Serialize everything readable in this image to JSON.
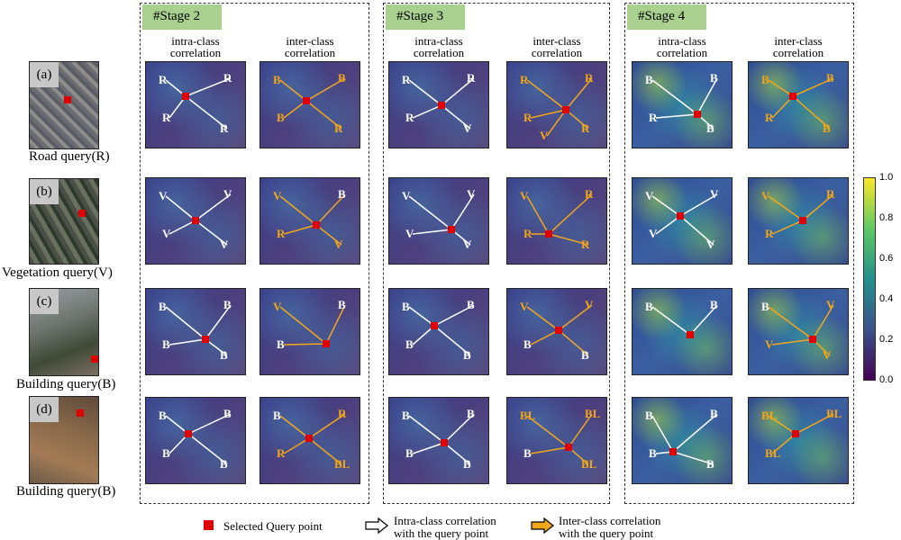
{
  "stages": [
    "#Stage 2",
    "#Stage 3",
    "#Stage 4"
  ],
  "column_headers": {
    "intra": [
      "intra-class",
      "correlation"
    ],
    "inter": [
      "inter-class",
      "correlation"
    ]
  },
  "rows": [
    {
      "tag": "(a)",
      "label": "Road query(R)"
    },
    {
      "tag": "(b)",
      "label": "Vegetation query(V)"
    },
    {
      "tag": "(c)",
      "label": "Building query(B)"
    },
    {
      "tag": "(d)",
      "label": "Building query(B)"
    }
  ],
  "colorbar": {
    "ticks": [
      "1.0",
      "0.8",
      "0.6",
      "0.4",
      "0.2",
      "0.0"
    ],
    "colormap": [
      "#fde725",
      "#5ec962",
      "#21918c",
      "#3b528b",
      "#440154"
    ]
  },
  "legend": {
    "query": "Selected Query point",
    "intra": [
      "Intra-class correlation",
      "with the query point"
    ],
    "inter": [
      "Inter-class correlation",
      "with the query point"
    ]
  },
  "colors": {
    "stage_tag": "#a9d08e",
    "inter_arrow": "#f2a71b",
    "intra_arrow": "#ffffff",
    "query": "#e00000"
  },
  "panels": {
    "r0": [
      {
        "labels": [
          "R",
          "R",
          "R",
          "R"
        ],
        "kind": "intra"
      },
      {
        "labels": [
          "B",
          "B",
          "B",
          "R"
        ],
        "kind": "inter"
      },
      {
        "labels": [
          "R",
          "R",
          "R",
          "V"
        ],
        "kind": "intra"
      },
      {
        "labels": [
          "R",
          "R",
          "R",
          "R",
          "V"
        ],
        "kind": "inter"
      },
      {
        "labels": [
          "B",
          "B",
          "R",
          "B"
        ],
        "kind": "intra"
      },
      {
        "labels": [
          "B",
          "B",
          "R",
          "B"
        ],
        "kind": "inter"
      }
    ],
    "r1": [
      {
        "labels": [
          "V",
          "V",
          "V",
          "V"
        ],
        "kind": "intra"
      },
      {
        "labels": [
          "V",
          "B",
          "R",
          "V"
        ],
        "kind": "inter"
      },
      {
        "labels": [
          "V",
          "V",
          "V",
          "V"
        ],
        "kind": "intra"
      },
      {
        "labels": [
          "V",
          "R",
          "R",
          "R"
        ],
        "kind": "inter"
      },
      {
        "labels": [
          "V",
          "V",
          "V",
          "V"
        ],
        "kind": "intra"
      },
      {
        "labels": [
          "V",
          "R",
          "R"
        ],
        "kind": "inter"
      }
    ],
    "r2": [
      {
        "labels": [
          "B",
          "B",
          "B",
          "B"
        ],
        "kind": "intra"
      },
      {
        "labels": [
          "V",
          "B",
          "B"
        ],
        "kind": "inter"
      },
      {
        "labels": [
          "B",
          "B",
          "B",
          "B"
        ],
        "kind": "intra"
      },
      {
        "labels": [
          "V",
          "V",
          "B",
          "B"
        ],
        "kind": "inter"
      },
      {
        "labels": [
          "B",
          "B"
        ],
        "kind": "intra"
      },
      {
        "labels": [
          "B",
          "V",
          "V",
          "V"
        ],
        "kind": "inter"
      }
    ],
    "r3": [
      {
        "labels": [
          "B",
          "B",
          "B",
          "B"
        ],
        "kind": "intra"
      },
      {
        "labels": [
          "B",
          "R",
          "R",
          "BL"
        ],
        "kind": "inter"
      },
      {
        "labels": [
          "B",
          "B",
          "B",
          "B"
        ],
        "kind": "intra"
      },
      {
        "labels": [
          "BL",
          "BL",
          "B",
          "BL"
        ],
        "kind": "inter"
      },
      {
        "labels": [
          "B",
          "B",
          "B",
          "B"
        ],
        "kind": "intra"
      },
      {
        "labels": [
          "BL",
          "BL",
          "BL"
        ],
        "kind": "inter"
      }
    ]
  }
}
